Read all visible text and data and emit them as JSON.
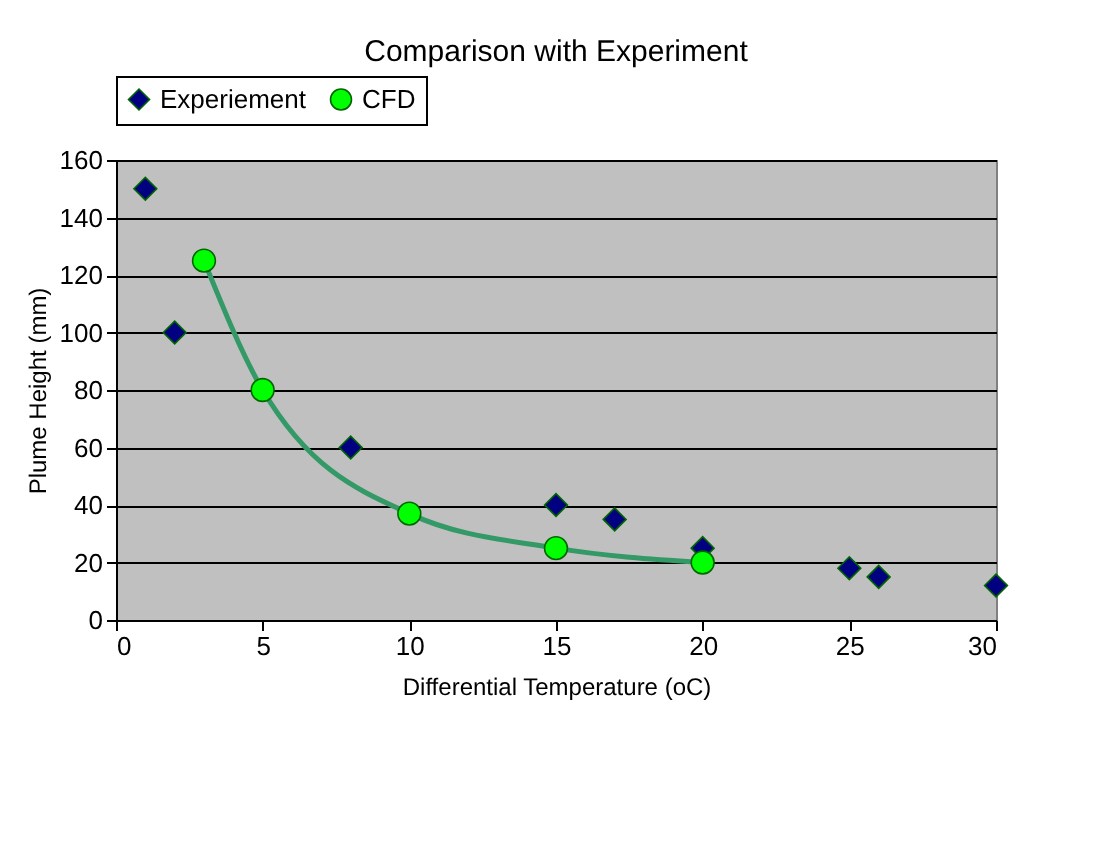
{
  "chart_data": {
    "type": "scatter",
    "title": "Comparison with Experiment",
    "xlabel": "Differential Temperature (oC)",
    "ylabel": "Plume Height (mm)",
    "xlim": [
      0,
      30
    ],
    "xticks": [
      0,
      5,
      10,
      15,
      20,
      25,
      30
    ],
    "ylim": [
      0,
      160
    ],
    "yticks": [
      0,
      20,
      40,
      60,
      80,
      100,
      120,
      140,
      160
    ],
    "grid": "y",
    "legend": "top",
    "series": [
      {
        "name": "Experiement",
        "marker": "diamond",
        "color": "#000080",
        "x": [
          1,
          2,
          8,
          15,
          17,
          20,
          25,
          26,
          30
        ],
        "values": [
          150,
          100,
          60,
          40,
          35,
          25,
          18,
          15,
          12
        ]
      },
      {
        "type": "line",
        "marker": "none",
        "line_style": "solid",
        "color": "#339966",
        "x": [
          3,
          5,
          10,
          15,
          20
        ],
        "values": [
          125,
          80,
          37,
          25,
          20
        ]
      },
      {
        "name": "CFD",
        "marker": "circle",
        "color": "#00ff00",
        "x": [
          3,
          5,
          10,
          15,
          20
        ],
        "values": [
          125,
          80,
          37,
          25,
          20
        ]
      }
    ]
  }
}
